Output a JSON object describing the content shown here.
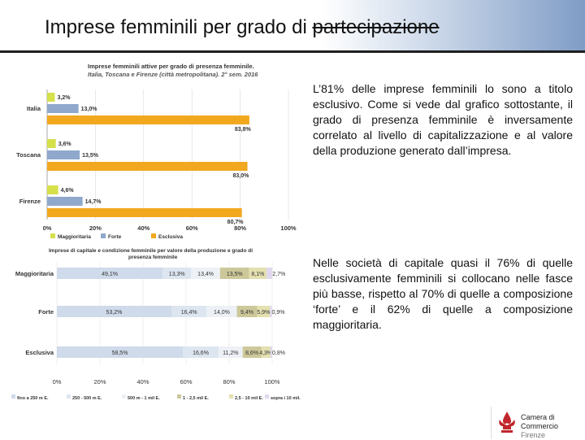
{
  "slide_title_prefix": "Imprese femminili per grado di ",
  "slide_title_strike": "partecipazione",
  "paragraph_1": "L’81% delle imprese femminili lo sono a titolo esclusivo. Come si vede dal grafico sottostante, il grado di presenza femminile è inversamente correlato al livello di capitalizzazione e al valore della produzione generato dall’impresa.",
  "paragraph_2": "Nelle società di capitale quasi il 76% di quelle esclusivamente femminili si collocano nelle fasce più basse, rispetto al 70% di quelle a composizione ‘forte’ e il 62% di quelle a composizione maggioritaria.",
  "logo": {
    "line1": "Camera di Commercio",
    "line2": "Firenze"
  },
  "colors": {
    "maggioritaria": "#d6e04a",
    "forte": "#8fa8cc",
    "esclusiva": "#f2a81e",
    "stack": [
      "#cfdaea",
      "#dde6f0",
      "#edf1f6",
      "#ccc89a",
      "#e4e0b0",
      "#e0d8ee",
      "#f5d27a"
    ]
  },
  "chart_data": [
    {
      "type": "bar",
      "orientation": "horizontal",
      "title_line1": "Imprese femminili attive per grado di presenza femminile.",
      "title_line2": "Italia, Toscana e Firenze (città metropolitana). 2° sem. 2016",
      "categories": [
        "Italia",
        "Toscana",
        "Firenze"
      ],
      "series": [
        {
          "name": "Maggioritaria",
          "values": [
            3.2,
            3.6,
            4.6
          ],
          "labels": [
            "3,2%",
            "3,6%",
            "4,6%"
          ]
        },
        {
          "name": "Forte",
          "values": [
            13.0,
            13.5,
            14.7
          ],
          "labels": [
            "13,0%",
            "13,5%",
            "14,7%"
          ]
        },
        {
          "name": "Esclusiva",
          "values": [
            83.8,
            83.0,
            80.7
          ],
          "labels": [
            "83,8%",
            "83,0%",
            "80,7%"
          ]
        }
      ],
      "xlim": [
        0,
        100
      ],
      "x_ticks": [
        "0%",
        "20%",
        "40%",
        "60%",
        "80%",
        "100%"
      ],
      "legend": [
        "Maggioritaria",
        "Forte",
        "Esclusiva"
      ]
    },
    {
      "type": "bar",
      "orientation": "horizontal",
      "stacked": true,
      "title_line1": "Imprese di capitale e condizione femminile per valore della produzione e grado di",
      "title_line2": "presenza femminile",
      "categories": [
        "Maggioritaria",
        "Forte",
        "Esclusiva"
      ],
      "series": [
        {
          "name": "fino a 250 m E.",
          "values": [
            49.1,
            53.2,
            58.5
          ],
          "labels": [
            "49,1%",
            "53,2%",
            "58,5%"
          ]
        },
        {
          "name": "250 - 500 m E.",
          "values": [
            13.3,
            16.4,
            16.6
          ],
          "labels": [
            "13,3%",
            "16,4%",
            "16,6%"
          ]
        },
        {
          "name": "500 m - 1 mil E.",
          "values": [
            13.4,
            14.0,
            11.2
          ],
          "labels": [
            "13,4%",
            "14,0%",
            "11,2%"
          ]
        },
        {
          "name": "1 - 2,5 mil E.",
          "values": [
            13.5,
            9.4,
            8.6
          ],
          "labels": [
            "13,5%",
            "9,4%",
            "8,6%"
          ]
        },
        {
          "name": "2,5 - 10 mil E.",
          "values": [
            8.1,
            5.9,
            4.3
          ],
          "labels": [
            "8,1%",
            "5,9%",
            "4,3%"
          ]
        },
        {
          "name": "sopra i 10 mil.",
          "values": [
            2.7,
            0.9,
            0.8
          ],
          "labels": [
            "2,7%",
            "0,9%",
            "0,8%"
          ]
        }
      ],
      "xlim": [
        0,
        100
      ],
      "x_ticks": [
        "0%",
        "20%",
        "40%",
        "60%",
        "80%",
        "100%"
      ],
      "legend": [
        "fino a 250 m E.",
        "250 - 500 m E.",
        "500 m - 1 mil E.",
        "1 - 2,5 mil E.",
        "2,5 - 10 mil E.",
        "sopra i 10 mil."
      ]
    }
  ]
}
